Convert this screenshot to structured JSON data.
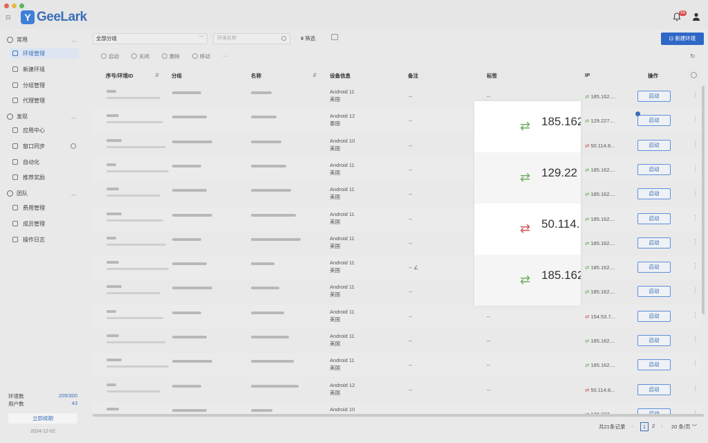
{
  "app": {
    "name": "GeeLark",
    "logo_letter": "Y",
    "notification_count": "99"
  },
  "sidebar": {
    "groups": [
      {
        "label": "常用"
      },
      {
        "label": "发现"
      },
      {
        "label": "团队"
      }
    ],
    "items": [
      {
        "label": "环境管理"
      },
      {
        "label": "新建环境"
      },
      {
        "label": "分组管理"
      },
      {
        "label": "代理管理"
      },
      {
        "label": "应用中心"
      },
      {
        "label": "窗口同步"
      },
      {
        "label": "自动化"
      },
      {
        "label": "推荐奖励"
      },
      {
        "label": "费用管理"
      },
      {
        "label": "成员管理"
      },
      {
        "label": "操作日志"
      }
    ],
    "quota": [
      {
        "label": "环境数",
        "value": "205/300"
      },
      {
        "label": "用户数",
        "value": "43"
      }
    ],
    "renew_label": "立即续期",
    "date": "2024-12-02"
  },
  "toolbar": {
    "group_select": "全部分组",
    "search_placeholder": "环境名称",
    "filter_label": "筛选",
    "new_env_label": "新建环境",
    "actions": [
      "启动",
      "关闭",
      "删除",
      "移动"
    ],
    "more": "···"
  },
  "table": {
    "headers": [
      "序号/环境ID",
      "分组",
      "名称",
      "设备信息",
      "备注",
      "标签",
      "IP",
      "操作"
    ],
    "start_label": "启动",
    "rows": [
      {
        "device": "Android 11",
        "region": "美国",
        "note": "--",
        "tag": "--",
        "ip": "185.162....",
        "status": "green"
      },
      {
        "device": "Android 12",
        "region": "泰国",
        "note": "--",
        "tag": "",
        "ip": "129.227....",
        "status": "green"
      },
      {
        "device": "Android 10",
        "region": "美国",
        "note": "--",
        "tag": "",
        "ip": "50.114.8...",
        "status": "red"
      },
      {
        "device": "Android 11",
        "region": "美国",
        "note": "--",
        "tag": "",
        "ip": "185.162....",
        "status": "green"
      },
      {
        "device": "Android 11",
        "region": "美国",
        "note": "--",
        "tag": "",
        "ip": "185.162....",
        "status": "green"
      },
      {
        "device": "Android 11",
        "region": "美国",
        "note": "--",
        "tag": "",
        "ip": "185.162....",
        "status": "green"
      },
      {
        "device": "Android 11",
        "region": "美国",
        "note": "--",
        "tag": "",
        "ip": "185.162....",
        "status": "green"
      },
      {
        "device": "Android 11",
        "region": "美国",
        "note": "-- ∠",
        "tag": "",
        "ip": "185.162....",
        "status": "green"
      },
      {
        "device": "Android 11",
        "region": "美国",
        "note": "--",
        "tag": "",
        "ip": "185.162....",
        "status": "green"
      },
      {
        "device": "Android 11",
        "region": "美国",
        "note": "--",
        "tag": "--",
        "ip": "154.53.7...",
        "status": "red"
      },
      {
        "device": "Android 11",
        "region": "美国",
        "note": "--",
        "tag": "--",
        "ip": "185.162....",
        "status": "green"
      },
      {
        "device": "Android 11",
        "region": "美国",
        "note": "--",
        "tag": "--",
        "ip": "185.162....",
        "status": "green"
      },
      {
        "device": "Android 12",
        "region": "美国",
        "note": "--",
        "tag": "--",
        "ip": "50.114.8...",
        "status": "red"
      },
      {
        "device": "Android 10",
        "region": "",
        "note": "",
        "tag": "",
        "ip": "129.227...",
        "status": "green"
      }
    ]
  },
  "zoom": {
    "rows": [
      {
        "ip": "185.162",
        "status": "green"
      },
      {
        "ip": "129.22",
        "status": "green"
      },
      {
        "ip": "50.114.",
        "status": "red"
      },
      {
        "ip": "185.162",
        "status": "green"
      }
    ]
  },
  "pagination": {
    "total": "共21条记录",
    "pages": [
      "1",
      "2"
    ],
    "current": "1",
    "page_size": "20 条/页"
  },
  "colors": {
    "accent": "#2f67c6",
    "green": "#6cae5d",
    "red": "#d15454"
  }
}
